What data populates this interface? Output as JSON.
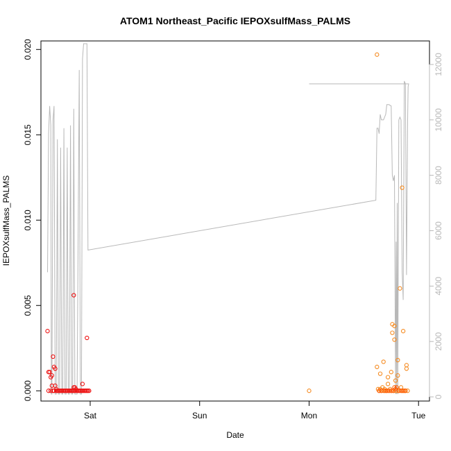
{
  "chart_data": {
    "type": "scatter",
    "title": "ATOM1 Northeast_Pacific IEPOXsulfMass_PALMS",
    "xlabel": "Date",
    "ylabel": "IEPOXsulfMass_PALMS",
    "x_ticks": [
      "Sat",
      "Sun",
      "Mon",
      "Tue"
    ],
    "y_ticks": [
      "0.000",
      "0.005",
      "0.010",
      "0.015",
      "0.020"
    ],
    "y2_ticks": [
      "0",
      "2000",
      "4000",
      "6000",
      "8000",
      "10000",
      "12000"
    ],
    "xlim": [
      -0.45,
      3.1
    ],
    "ylim": [
      -0.0006,
      0.0205
    ],
    "y2lim": [
      -150,
      12850
    ],
    "grid": false,
    "colors": {
      "red": "#ee1111",
      "orange": "#f58a1f",
      "dark_orange": "#ff5a00",
      "altitude": "#b8b8b8"
    },
    "series": [
      {
        "color": "red",
        "points": [
          [
            -0.39,
            0.0035
          ],
          [
            -0.38,
            0.0011
          ],
          [
            -0.37,
            0.0011
          ],
          [
            -0.36,
            0.0008
          ],
          [
            -0.35,
            0.0009
          ],
          [
            -0.35,
            0.0003
          ],
          [
            -0.34,
            0.002
          ],
          [
            -0.33,
            0.0014
          ],
          [
            -0.32,
            0.0013
          ],
          [
            -0.32,
            0.0003
          ],
          [
            -0.31,
            0.0001
          ],
          [
            -0.38,
            0.0
          ],
          [
            -0.36,
            0.0
          ],
          [
            -0.34,
            0.0
          ],
          [
            -0.33,
            0.0
          ],
          [
            -0.31,
            0.0
          ],
          [
            -0.3,
            0.0
          ],
          [
            -0.29,
            0.0
          ],
          [
            -0.28,
            0.0
          ],
          [
            -0.27,
            0.0
          ],
          [
            -0.26,
            0.0
          ],
          [
            -0.25,
            0.0
          ],
          [
            -0.24,
            0.0
          ],
          [
            -0.23,
            0.0
          ],
          [
            -0.22,
            0.0
          ],
          [
            -0.21,
            0.0
          ],
          [
            -0.2,
            0.0
          ],
          [
            -0.19,
            0.0
          ],
          [
            -0.18,
            0.0
          ],
          [
            -0.17,
            0.0
          ],
          [
            -0.16,
            0.0
          ],
          [
            -0.15,
            0.0
          ],
          [
            -0.14,
            0.0
          ],
          [
            -0.13,
            0.0
          ],
          [
            -0.12,
            0.0
          ],
          [
            -0.11,
            0.0
          ],
          [
            -0.1,
            0.0
          ],
          [
            -0.09,
            0.0
          ],
          [
            -0.08,
            0.0
          ],
          [
            -0.07,
            0.0
          ],
          [
            -0.06,
            0.0
          ],
          [
            -0.05,
            0.0
          ],
          [
            -0.04,
            0.0
          ],
          [
            -0.03,
            0.0
          ],
          [
            -0.02,
            0.0
          ],
          [
            -0.01,
            0.0
          ],
          [
            -0.15,
            0.0056
          ],
          [
            -0.15,
            0.0002
          ],
          [
            -0.14,
            0.0002
          ],
          [
            -0.13,
            0.0001
          ],
          [
            -0.07,
            0.0004
          ],
          [
            -0.03,
            0.0031
          ]
        ]
      },
      {
        "color": "orange",
        "points": [
          [
            2.0,
            0.0
          ],
          [
            2.62,
            0.0197
          ],
          [
            2.62,
            0.0014
          ],
          [
            2.63,
            0.0001
          ],
          [
            2.64,
            0.0
          ],
          [
            2.65,
            0.0001
          ],
          [
            2.65,
            0.001
          ],
          [
            2.66,
            0.0
          ],
          [
            2.67,
            0.0002
          ],
          [
            2.68,
            0.0017
          ],
          [
            2.68,
            0.0
          ],
          [
            2.69,
            0.0001
          ],
          [
            2.7,
            0.0
          ],
          [
            2.71,
            0.0
          ],
          [
            2.72,
            0.0004
          ],
          [
            2.72,
            0.0008
          ],
          [
            2.73,
            0.0
          ],
          [
            2.74,
            0.0001
          ],
          [
            2.75,
            0.0011
          ],
          [
            2.75,
            0.0
          ],
          [
            2.76,
            0.0039
          ],
          [
            2.76,
            0.0034
          ],
          [
            2.77,
            0.0
          ],
          [
            2.78,
            0.0038
          ],
          [
            2.78,
            0.003
          ],
          [
            2.79,
            0.0006
          ],
          [
            2.79,
            0.0
          ],
          [
            2.8,
            0.0
          ],
          [
            2.81,
            0.0009
          ],
          [
            2.81,
            0.0018
          ],
          [
            2.82,
            0.0
          ],
          [
            2.83,
            0.006
          ],
          [
            2.84,
            0.0002
          ],
          [
            2.85,
            0.0
          ],
          [
            2.85,
            0.0119
          ],
          [
            2.86,
            0.0035
          ],
          [
            2.87,
            0.0
          ],
          [
            2.88,
            0.0
          ],
          [
            2.89,
            0.0015
          ],
          [
            2.89,
            0.0013
          ],
          [
            2.9,
            0.0
          ]
        ]
      },
      {
        "color": "dark_orange",
        "points": [
          [
            2.64,
            0.0
          ],
          [
            2.66,
            0.0
          ],
          [
            2.69,
            0.0
          ],
          [
            2.71,
            0.0
          ],
          [
            2.73,
            0.0
          ],
          [
            2.75,
            0.0
          ],
          [
            2.77,
            0.0
          ],
          [
            2.78,
            0.0002
          ],
          [
            2.79,
            0.0001
          ],
          [
            2.8,
            0.0002
          ],
          [
            2.82,
            0.0
          ],
          [
            2.84,
            0.0
          ],
          [
            2.86,
            0.0
          ],
          [
            2.88,
            0.0
          ]
        ]
      }
    ],
    "altitude_line": [
      [
        -0.39,
        4500
      ],
      [
        -0.38,
        9500
      ],
      [
        -0.37,
        10500
      ],
      [
        -0.36,
        9800
      ],
      [
        -0.355,
        100
      ],
      [
        -0.35,
        100
      ],
      [
        -0.34,
        10000
      ],
      [
        -0.33,
        10500
      ],
      [
        -0.32,
        100
      ],
      [
        -0.31,
        100
      ],
      [
        -0.3,
        9300
      ],
      [
        -0.29,
        100
      ],
      [
        -0.28,
        100
      ],
      [
        -0.27,
        9000
      ],
      [
        -0.26,
        100
      ],
      [
        -0.25,
        100
      ],
      [
        -0.24,
        9700
      ],
      [
        -0.23,
        100
      ],
      [
        -0.22,
        100
      ],
      [
        -0.21,
        9000
      ],
      [
        -0.2,
        100
      ],
      [
        -0.19,
        100
      ],
      [
        -0.18,
        9800
      ],
      [
        -0.17,
        100
      ],
      [
        -0.16,
        100
      ],
      [
        -0.15,
        10400
      ],
      [
        -0.14,
        100
      ],
      [
        -0.12,
        100
      ],
      [
        -0.1,
        11800
      ],
      [
        -0.09,
        100
      ],
      [
        -0.08,
        100
      ],
      [
        -0.07,
        12200
      ],
      [
        -0.06,
        12750
      ],
      [
        -0.03,
        12750
      ],
      [
        -0.02,
        5300
      ],
      [
        2.61,
        7100
      ],
      [
        2.62,
        9700
      ],
      [
        2.63,
        9700
      ],
      [
        2.64,
        9500
      ],
      [
        2.65,
        10200
      ],
      [
        2.66,
        10000
      ],
      [
        2.67,
        10000
      ],
      [
        2.68,
        10000
      ],
      [
        2.7,
        10200
      ],
      [
        2.71,
        10550
      ],
      [
        2.73,
        10550
      ],
      [
        2.75,
        10500
      ],
      [
        2.76,
        8000
      ],
      [
        2.77,
        7800
      ],
      [
        2.78,
        8000
      ],
      [
        2.79,
        100
      ],
      [
        2.795,
        5600
      ],
      [
        2.8,
        100
      ],
      [
        2.805,
        7000
      ],
      [
        2.81,
        100
      ],
      [
        2.82,
        10000
      ],
      [
        2.83,
        10100
      ],
      [
        2.84,
        10000
      ],
      [
        2.85,
        4500
      ],
      [
        2.86,
        3500
      ],
      [
        2.87,
        11400
      ],
      [
        2.88,
        11300
      ],
      [
        2.89,
        4400
      ],
      [
        2.9,
        10000
      ],
      [
        2.905,
        11200
      ],
      [
        2.91,
        11300
      ],
      [
        2.0,
        11300
      ]
    ]
  }
}
